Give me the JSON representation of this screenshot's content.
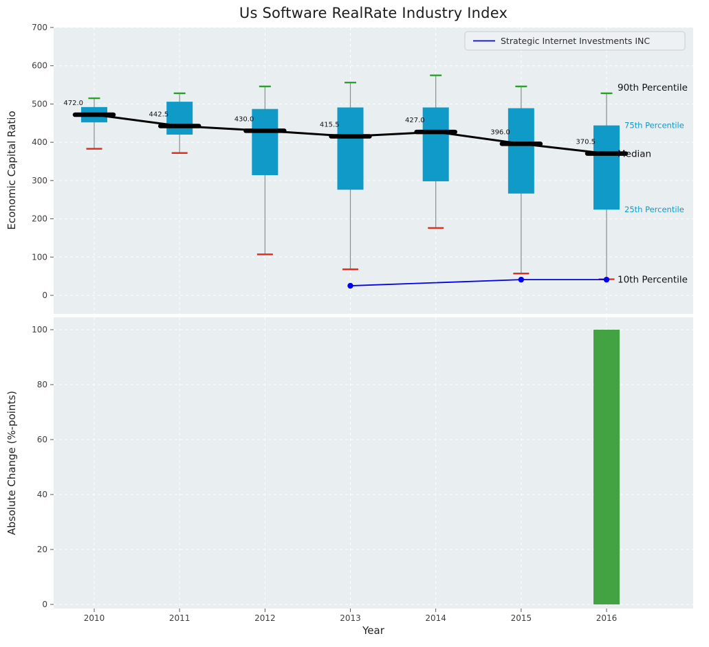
{
  "chart_data": {
    "type": "boxplot",
    "title": "Us Software RealRate Industry Index",
    "xlabel": "Year",
    "years": [
      2010,
      2011,
      2012,
      2013,
      2014,
      2015,
      2016
    ],
    "top_panel": {
      "ylabel": "Economic Capital Ratio",
      "ylim": [
        -48,
        700
      ],
      "yticks": [
        0,
        100,
        200,
        300,
        400,
        500,
        600,
        700
      ],
      "grid": "white-dashed",
      "boxes": [
        {
          "year": 2010,
          "p10": 383,
          "p25": 452,
          "median": 472.0,
          "p75": 492,
          "p90": 515
        },
        {
          "year": 2011,
          "p10": 372,
          "p25": 420,
          "median": 442.5,
          "p75": 506,
          "p90": 528
        },
        {
          "year": 2012,
          "p10": 107,
          "p25": 314,
          "median": 430.0,
          "p75": 487,
          "p90": 546
        },
        {
          "year": 2013,
          "p10": 68,
          "p25": 276,
          "median": 415.5,
          "p75": 491,
          "p90": 556
        },
        {
          "year": 2014,
          "p10": 176,
          "p25": 298,
          "median": 427.0,
          "p75": 491,
          "p90": 575
        },
        {
          "year": 2015,
          "p10": 57,
          "p25": 266,
          "median": 396.0,
          "p75": 489,
          "p90": 546
        },
        {
          "year": 2016,
          "p10": 42,
          "p25": 224,
          "median": 370.5,
          "p75": 444,
          "p90": 528
        }
      ],
      "company_line": {
        "name": "Strategic Internet Investments INC",
        "points": [
          {
            "year": 2013,
            "value": 25
          },
          {
            "year": 2015,
            "value": 41
          },
          {
            "year": 2016,
            "value": 41
          }
        ]
      },
      "annotations": [
        {
          "label": "90th Percentile",
          "anchor": "p90",
          "style": "black",
          "dy": -4
        },
        {
          "label": "75th Percentile",
          "anchor": "p75",
          "style": "cyan",
          "dy": 4
        },
        {
          "label": "Median",
          "anchor": "median",
          "style": "black",
          "dy": 5
        },
        {
          "label": "25th Percentile",
          "anchor": "p25",
          "style": "cyan",
          "dy": 4
        },
        {
          "label": "10th Percentile",
          "anchor": "p10",
          "style": "black",
          "dy": 5
        }
      ]
    },
    "bottom_panel": {
      "ylabel": "Absolute Change (%-points)",
      "ylim": [
        0,
        105
      ],
      "yticks": [
        0,
        20,
        40,
        60,
        80,
        100
      ],
      "bars": [
        {
          "year": 2016,
          "value": 100
        }
      ]
    },
    "legend": {
      "position": "upper right",
      "entries": [
        "Strategic Internet Investments INC"
      ]
    },
    "colors": {
      "panel_bg": "#e9eef1",
      "grid": "#ffffff",
      "box_fill": "#0f9ac8",
      "p90_cap": "#2ca02c",
      "p10_cap": "#e52b20",
      "median_line": "#000000",
      "whisker": "#8c8c8c",
      "company_line": "#0000ee",
      "bar_fill": "#43a343",
      "annotation_cyan": "#0f9ac8",
      "tick_label": "#3d3d3d",
      "axis_label": "#222222",
      "title": "#1c1c1c"
    }
  }
}
